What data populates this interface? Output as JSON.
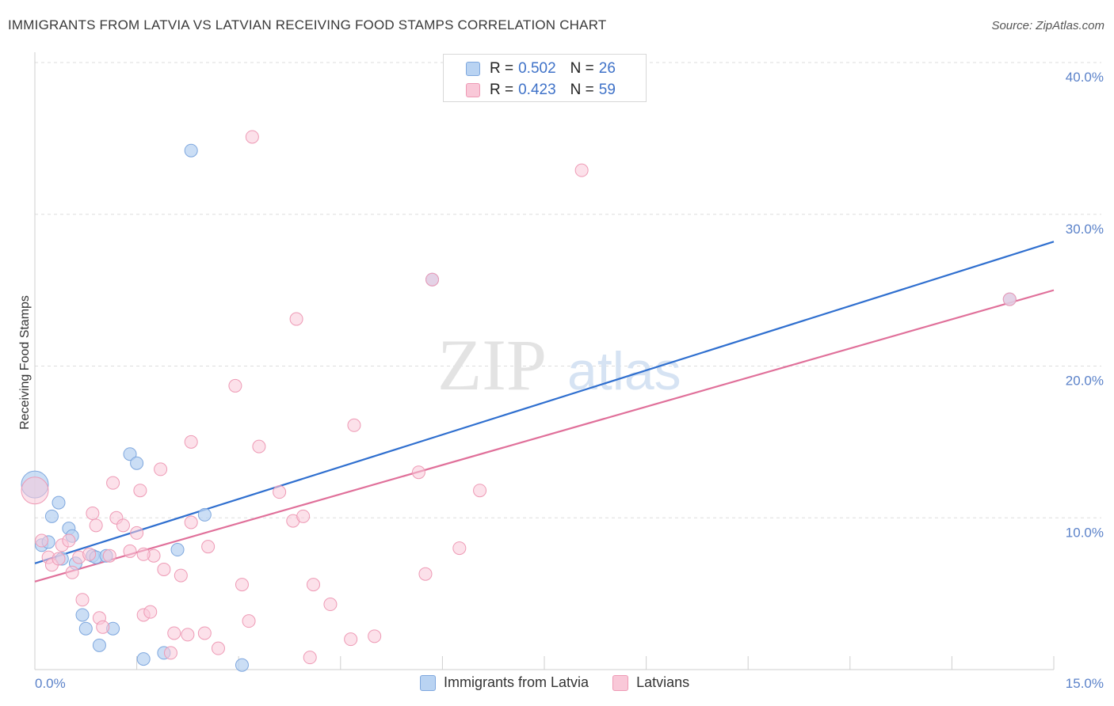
{
  "header": {
    "title": "IMMIGRANTS FROM LATVIA VS LATVIAN RECEIVING FOOD STAMPS CORRELATION CHART",
    "source": "Source: ZipAtlas.com"
  },
  "legend": {
    "series": [
      {
        "r_label": "R =",
        "r_value": "0.502",
        "n_label": "N =",
        "n_value": "26"
      },
      {
        "r_label": "R =",
        "r_value": "0.423",
        "n_label": "N =",
        "n_value": "59"
      }
    ]
  },
  "bottom_legend": {
    "latvia": "Immigrants from Latvia",
    "latvians": "Latvians"
  },
  "colors": {
    "blue_fill": "#b9d3f2",
    "blue_stroke": "#7ea7de",
    "blue_line": "#2f6fcf",
    "pink_fill": "#f9c8d8",
    "pink_stroke": "#ee9ab5",
    "pink_line": "#e0709a",
    "tick_label": "#5b82c9"
  },
  "chart_data": {
    "type": "scatter",
    "title": "IMMIGRANTS FROM LATVIA VS LATVIAN RECEIVING FOOD STAMPS CORRELATION CHART",
    "xlabel": "",
    "ylabel": "Receiving Food Stamps",
    "xlim": [
      0,
      15
    ],
    "ylim": [
      0,
      40
    ],
    "x_tick_labels": [
      "0.0%",
      "15.0%"
    ],
    "y_ticks": [
      10,
      20,
      30,
      40
    ],
    "y_tick_labels": [
      "10.0%",
      "20.0%",
      "30.0%",
      "40.0%"
    ],
    "grid": true,
    "watermark": "ZIPatlas",
    "series": [
      {
        "name": "Immigrants from Latvia",
        "points": [
          [
            0.0,
            12.2
          ],
          [
            0.1,
            8.2
          ],
          [
            0.2,
            8.4
          ],
          [
            0.25,
            10.1
          ],
          [
            0.35,
            11.0
          ],
          [
            0.4,
            7.3
          ],
          [
            0.5,
            9.3
          ],
          [
            0.55,
            8.8
          ],
          [
            0.6,
            7.0
          ],
          [
            0.7,
            3.6
          ],
          [
            0.75,
            2.7
          ],
          [
            0.85,
            7.5
          ],
          [
            0.9,
            7.4
          ],
          [
            0.95,
            1.6
          ],
          [
            1.05,
            7.5
          ],
          [
            1.15,
            2.7
          ],
          [
            1.4,
            14.2
          ],
          [
            1.5,
            13.6
          ],
          [
            1.6,
            0.7
          ],
          [
            1.9,
            1.1
          ],
          [
            2.1,
            7.9
          ],
          [
            2.3,
            34.2
          ],
          [
            2.5,
            10.2
          ],
          [
            3.05,
            0.3
          ],
          [
            5.85,
            25.7
          ],
          [
            14.35,
            24.4
          ]
        ],
        "trend": {
          "x": [
            0,
            15
          ],
          "y": [
            7.0,
            28.2
          ]
        }
      },
      {
        "name": "Latvians",
        "points": [
          [
            0.0,
            11.8
          ],
          [
            0.1,
            8.5
          ],
          [
            0.2,
            7.4
          ],
          [
            0.25,
            6.9
          ],
          [
            0.35,
            7.3
          ],
          [
            0.4,
            8.2
          ],
          [
            0.5,
            8.5
          ],
          [
            0.55,
            6.4
          ],
          [
            0.65,
            7.4
          ],
          [
            0.7,
            4.6
          ],
          [
            0.8,
            7.6
          ],
          [
            0.85,
            10.3
          ],
          [
            0.9,
            9.5
          ],
          [
            0.95,
            3.4
          ],
          [
            1.0,
            2.8
          ],
          [
            1.1,
            7.5
          ],
          [
            1.15,
            12.3
          ],
          [
            1.2,
            10.0
          ],
          [
            1.3,
            9.5
          ],
          [
            1.4,
            7.8
          ],
          [
            1.5,
            9.0
          ],
          [
            1.55,
            11.8
          ],
          [
            1.6,
            3.6
          ],
          [
            1.7,
            3.8
          ],
          [
            1.75,
            7.5
          ],
          [
            1.85,
            13.2
          ],
          [
            1.9,
            6.6
          ],
          [
            2.0,
            1.1
          ],
          [
            2.05,
            2.4
          ],
          [
            2.15,
            6.2
          ],
          [
            2.25,
            2.3
          ],
          [
            2.3,
            9.7
          ],
          [
            2.3,
            15.0
          ],
          [
            2.5,
            2.4
          ],
          [
            2.55,
            8.1
          ],
          [
            2.7,
            1.4
          ],
          [
            2.95,
            18.7
          ],
          [
            3.05,
            5.6
          ],
          [
            3.15,
            3.2
          ],
          [
            3.2,
            35.1
          ],
          [
            3.3,
            14.7
          ],
          [
            3.6,
            11.7
          ],
          [
            3.8,
            9.8
          ],
          [
            3.85,
            23.1
          ],
          [
            3.95,
            10.1
          ],
          [
            4.05,
            0.8
          ],
          [
            4.1,
            5.6
          ],
          [
            4.35,
            4.3
          ],
          [
            4.65,
            2.0
          ],
          [
            4.7,
            16.1
          ],
          [
            5.0,
            2.2
          ],
          [
            5.65,
            13.0
          ],
          [
            5.75,
            6.3
          ],
          [
            5.85,
            25.7
          ],
          [
            6.25,
            8.0
          ],
          [
            6.55,
            11.8
          ],
          [
            8.05,
            32.9
          ],
          [
            14.35,
            24.4
          ],
          [
            1.6,
            7.6
          ]
        ],
        "trend": {
          "x": [
            0,
            15
          ],
          "y": [
            5.8,
            25.0
          ]
        }
      }
    ]
  }
}
